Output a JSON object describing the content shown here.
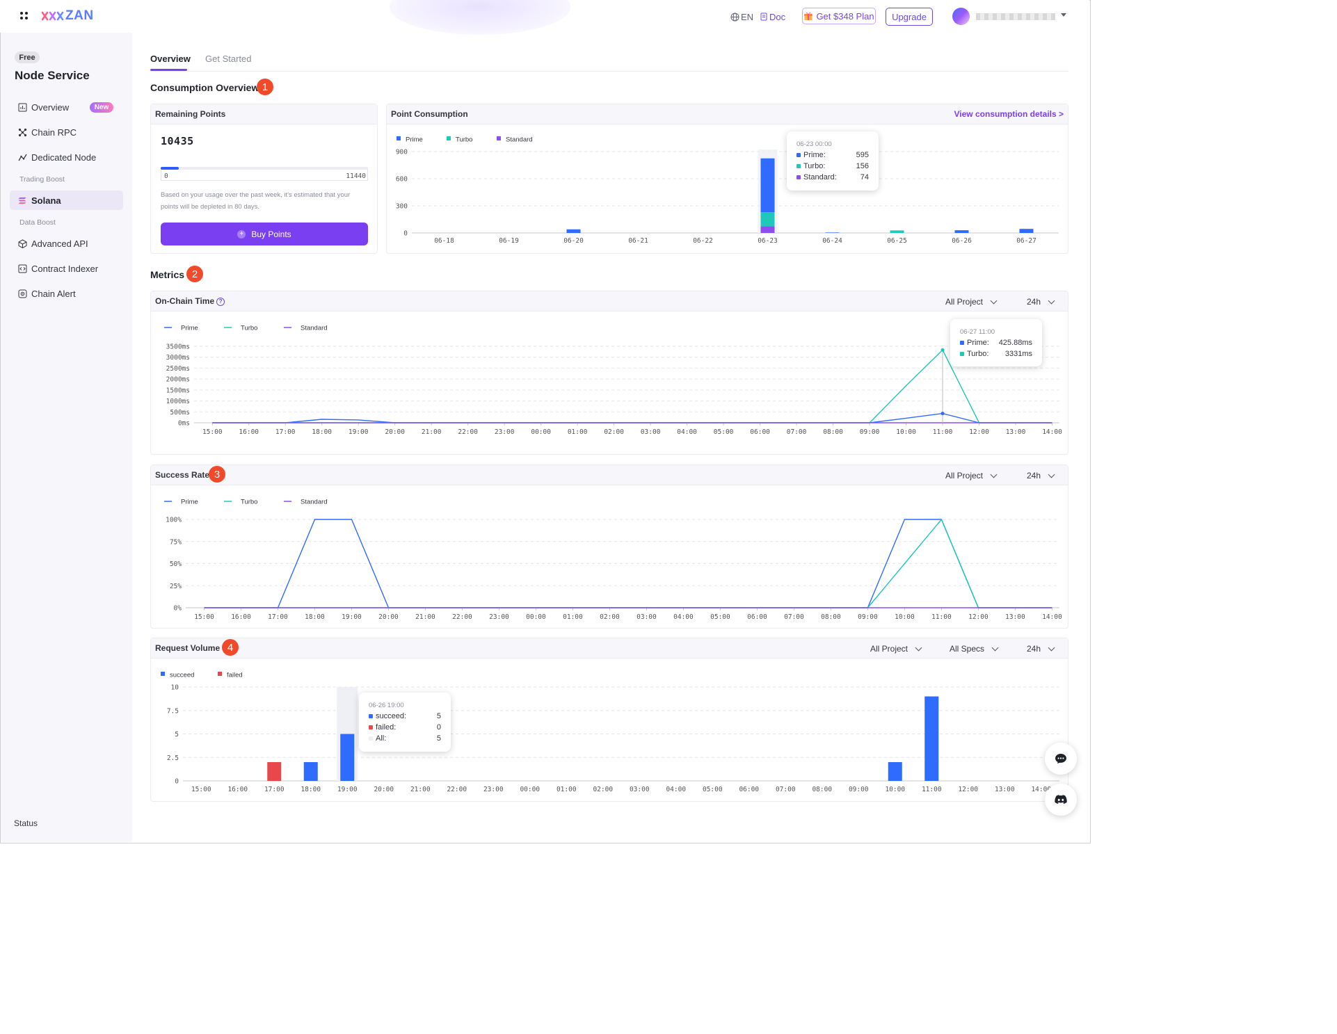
{
  "header": {
    "brand": "ZAN",
    "lang": "EN",
    "doc": "Doc",
    "plan_button": "Get $348 Plan",
    "upgrade_button": "Upgrade"
  },
  "sidebar": {
    "plan_badge": "Free",
    "title": "Node Service",
    "items": [
      {
        "label": "Overview",
        "badge": "New"
      },
      {
        "label": "Chain RPC"
      },
      {
        "label": "Dedicated Node"
      }
    ],
    "group_trading": "Trading Boost",
    "solana": "Solana",
    "group_data": "Data Boost",
    "data_items": [
      {
        "label": "Advanced API"
      },
      {
        "label": "Contract Indexer"
      },
      {
        "label": "Chain Alert"
      }
    ],
    "status": "Status"
  },
  "tabs": {
    "overview": "Overview",
    "get_started": "Get Started"
  },
  "consumption": {
    "title": "Consumption Overview",
    "number": "1",
    "remaining": {
      "label": "Remaining Points",
      "value": "10435",
      "min": "0",
      "max": "11440",
      "progress": 0.088,
      "estimate": "Based on your usage over the past week, it's estimated that your points will be depleted in 80 days.",
      "buy_button": "Buy Points"
    },
    "point_consumption": {
      "label": "Point Consumption",
      "link": "View consumption details >",
      "tooltip": {
        "title": "06-23 00:00",
        "rows": [
          {
            "name": "Prime:",
            "value": "595",
            "color": "#2f6bff"
          },
          {
            "name": "Turbo:",
            "value": "156",
            "color": "#1fc8b9"
          },
          {
            "name": "Standard:",
            "value": "74",
            "color": "#8a4ff0"
          }
        ]
      }
    }
  },
  "metrics": {
    "title": "Metrics",
    "number": "2",
    "onchain": {
      "label": "On-Chain Time",
      "info": "?",
      "project_select": "All Project",
      "range_select": "24h",
      "tooltip": {
        "title": "06-27 11:00",
        "rows": [
          {
            "name": "Prime:",
            "value": "425.88ms",
            "color": "#2f6bff"
          },
          {
            "name": "Turbo:",
            "value": "3331ms",
            "color": "#1fc8b9"
          }
        ]
      }
    },
    "success": {
      "label": "Success Rate",
      "number": "3",
      "project_select": "All Project",
      "range_select": "24h"
    },
    "volume": {
      "label": "Request Volume",
      "number": "4",
      "project_select": "All Project",
      "specs_select": "All Specs",
      "range_select": "24h",
      "tooltip": {
        "title": "06-26 19:00",
        "rows": [
          {
            "name": "succeed:",
            "value": "5",
            "color": "#2f6bff"
          },
          {
            "name": "failed:",
            "value": "0",
            "color": "#e8474c"
          },
          {
            "name": "All:",
            "value": "5",
            "color": "#f0f0f0"
          }
        ]
      }
    }
  },
  "chart_data": [
    {
      "id": "point_consumption",
      "type": "bar",
      "stacked": true,
      "categories": [
        "06-18",
        "06-19",
        "06-20",
        "06-21",
        "06-22",
        "06-23",
        "06-24",
        "06-25",
        "06-26",
        "06-27"
      ],
      "series": [
        {
          "name": "Prime",
          "color": "#2f6bff",
          "values": [
            0,
            0,
            40,
            0,
            0,
            595,
            5,
            0,
            30,
            45
          ]
        },
        {
          "name": "Turbo",
          "color": "#1fc8b9",
          "values": [
            0,
            0,
            0,
            0,
            0,
            156,
            0,
            28,
            0,
            0
          ]
        },
        {
          "name": "Standard",
          "color": "#8a4ff0",
          "values": [
            0,
            0,
            0,
            0,
            0,
            74,
            0,
            0,
            0,
            0
          ]
        }
      ],
      "ylim": [
        0,
        900
      ],
      "yticks": [
        "0",
        "300",
        "600",
        "900"
      ],
      "legend": "top-left"
    },
    {
      "id": "onchain_time",
      "type": "line",
      "categories": [
        "15:00",
        "16:00",
        "17:00",
        "18:00",
        "19:00",
        "20:00",
        "21:00",
        "22:00",
        "23:00",
        "00:00",
        "01:00",
        "02:00",
        "03:00",
        "04:00",
        "05:00",
        "06:00",
        "07:00",
        "08:00",
        "09:00",
        "10:00",
        "11:00",
        "12:00",
        "13:00",
        "14:00"
      ],
      "series": [
        {
          "name": "Prime",
          "color": "#2f6bff",
          "values": [
            0,
            0,
            0,
            160,
            130,
            0,
            0,
            0,
            0,
            0,
            0,
            0,
            0,
            0,
            0,
            0,
            0,
            0,
            0,
            210,
            425.88,
            0,
            0,
            0
          ]
        },
        {
          "name": "Turbo",
          "color": "#1fc8b9",
          "values": [
            0,
            0,
            0,
            0,
            0,
            0,
            0,
            0,
            0,
            0,
            0,
            0,
            0,
            0,
            0,
            0,
            0,
            0,
            0,
            1700,
            3331,
            0,
            0,
            0
          ]
        },
        {
          "name": "Standard",
          "color": "#8a4ff0",
          "values": [
            0,
            0,
            0,
            0,
            0,
            0,
            0,
            0,
            0,
            0,
            0,
            0,
            0,
            0,
            0,
            0,
            0,
            0,
            0,
            0,
            0,
            0,
            0,
            0
          ]
        }
      ],
      "ylim": [
        0,
        3500
      ],
      "yticks": [
        "0ms",
        "500ms",
        "1000ms",
        "1500ms",
        "2000ms",
        "2500ms",
        "3000ms",
        "3500ms"
      ],
      "legend": "top-left"
    },
    {
      "id": "success_rate",
      "type": "line",
      "categories": [
        "15:00",
        "16:00",
        "17:00",
        "18:00",
        "19:00",
        "20:00",
        "21:00",
        "22:00",
        "23:00",
        "00:00",
        "01:00",
        "02:00",
        "03:00",
        "04:00",
        "05:00",
        "06:00",
        "07:00",
        "08:00",
        "09:00",
        "10:00",
        "11:00",
        "12:00",
        "13:00",
        "14:00"
      ],
      "series": [
        {
          "name": "Prime",
          "color": "#2f6bff",
          "values": [
            0,
            0,
            0,
            100,
            100,
            0,
            0,
            0,
            0,
            0,
            0,
            0,
            0,
            0,
            0,
            0,
            0,
            0,
            0,
            100,
            100,
            0,
            0,
            0
          ]
        },
        {
          "name": "Turbo",
          "color": "#1fc8b9",
          "values": [
            0,
            0,
            0,
            0,
            0,
            0,
            0,
            0,
            0,
            0,
            0,
            0,
            0,
            0,
            0,
            0,
            0,
            0,
            0,
            50,
            100,
            0,
            0,
            0
          ]
        },
        {
          "name": "Standard",
          "color": "#8a4ff0",
          "values": [
            0,
            0,
            0,
            0,
            0,
            0,
            0,
            0,
            0,
            0,
            0,
            0,
            0,
            0,
            0,
            0,
            0,
            0,
            0,
            0,
            0,
            0,
            0,
            0
          ]
        }
      ],
      "ylim": [
        0,
        100
      ],
      "yticks": [
        "0%",
        "25%",
        "50%",
        "75%",
        "100%"
      ],
      "legend": "top-left"
    },
    {
      "id": "request_volume",
      "type": "bar",
      "categories": [
        "15:00",
        "16:00",
        "17:00",
        "18:00",
        "19:00",
        "20:00",
        "21:00",
        "22:00",
        "23:00",
        "00:00",
        "01:00",
        "02:00",
        "03:00",
        "04:00",
        "05:00",
        "06:00",
        "07:00",
        "08:00",
        "09:00",
        "10:00",
        "11:00",
        "12:00",
        "13:00",
        "14:00"
      ],
      "series": [
        {
          "name": "succeed",
          "color": "#2f6bff",
          "values": [
            0,
            0,
            0,
            2,
            5,
            0,
            0,
            0,
            0,
            0,
            0,
            0,
            0,
            0,
            0,
            0,
            0,
            0,
            0,
            2,
            9,
            0,
            0,
            0
          ]
        },
        {
          "name": "failed",
          "color": "#e8474c",
          "values": [
            0,
            0,
            2,
            0,
            0,
            0,
            0,
            0,
            0,
            0,
            0,
            0,
            0,
            0,
            0,
            0,
            0,
            0,
            0,
            0,
            0,
            0,
            0,
            0
          ]
        }
      ],
      "ylim": [
        0,
        10
      ],
      "yticks": [
        "0",
        "2.5",
        "5",
        "7.5",
        "10"
      ],
      "legend": "top-left"
    }
  ]
}
